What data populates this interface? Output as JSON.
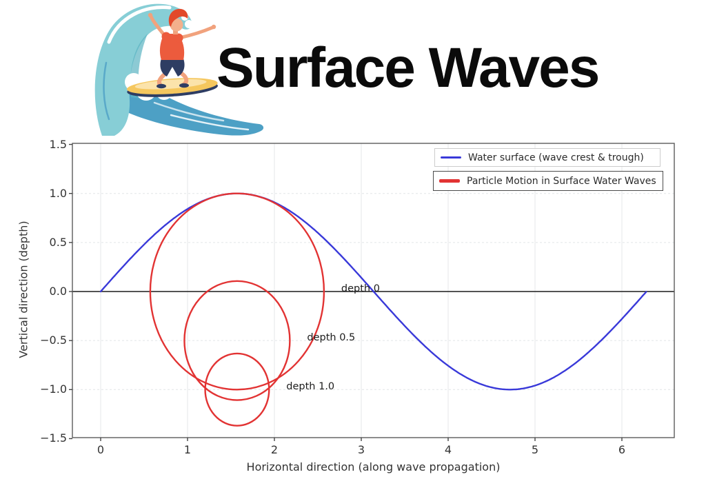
{
  "header": {
    "title": "Surface Waves",
    "logo_alt": "surfer riding a wave illustration"
  },
  "chart_data": {
    "type": "line",
    "title": "",
    "xlabel": "Horizontal direction (along wave propagation)",
    "ylabel": "Vertical direction (depth)",
    "xlim": [
      -0.33,
      6.6
    ],
    "ylim": [
      -1.5,
      1.5
    ],
    "grid": true,
    "legend_position": "upper right",
    "x_ticks": [
      {
        "label": "0",
        "value": 0
      },
      {
        "label": "1",
        "value": 1
      },
      {
        "label": "2",
        "value": 2
      },
      {
        "label": "3",
        "value": 3
      },
      {
        "label": "4",
        "value": 4
      },
      {
        "label": "5",
        "value": 5
      },
      {
        "label": "6",
        "value": 6
      }
    ],
    "y_ticks": [
      {
        "label": "1.5",
        "value": 1.5
      },
      {
        "label": "1.0",
        "value": 1.0
      },
      {
        "label": "0.5",
        "value": 0.5
      },
      {
        "label": "0.0",
        "value": 0.0
      },
      {
        "label": "−0.5",
        "value": -0.5
      },
      {
        "label": "−1.0",
        "value": -1.0
      },
      {
        "label": "−1.5",
        "value": -1.5
      }
    ],
    "zero_line_value": 0.0,
    "series": [
      {
        "name": "Water surface (wave crest & trough)",
        "color": "#3939d9",
        "function": "sin",
        "x_start": 0,
        "x_end": 6.2832,
        "amplitude": 1.0
      }
    ],
    "particle_orbits": [
      {
        "label": "depth 0",
        "cx": 1.5708,
        "cy": 0.0,
        "radius": 1.0
      },
      {
        "label": "depth 0.5",
        "cx": 1.5708,
        "cy": -0.5,
        "radius": 0.607
      },
      {
        "label": "depth 1.0",
        "cx": 1.5708,
        "cy": -1.0,
        "radius": 0.368
      }
    ],
    "orbit_color": "#e23333",
    "legend": [
      {
        "label": "Water surface (wave crest & trough)",
        "color": "#3939d9"
      },
      {
        "label": "Particle Motion in Surface Water Waves",
        "color": "#e23333"
      }
    ]
  }
}
